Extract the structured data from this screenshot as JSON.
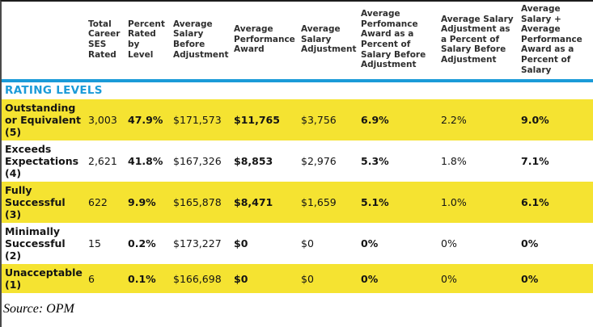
{
  "colors": {
    "highlight_yellow": "#f5e331",
    "accent_blue": "#1b9bd8"
  },
  "table": {
    "section_label": "RATING LEVELS",
    "columns": [
      "",
      "Total Career SES Rated",
      "Percent Rated by Level",
      "Average Salary Before Adjustment",
      "Average Performance Award",
      "Average Salary Adjustment",
      "Average Perfomance Award as a Percent of Salary Before Adjustment",
      "Average Salary Adjustment as a Percent of Salary Before Adjustment",
      "Average Salary + Average Performance Award as a Percent of Salary"
    ],
    "bold_value_columns": [
      1,
      3,
      5,
      7
    ],
    "rows": [
      {
        "label": "Outstanding or Equivalent (5)",
        "highlighted": true,
        "values": [
          "3,003",
          "47.9%",
          "$171,573",
          "$11,765",
          "$3,756",
          "6.9%",
          "2.2%",
          "9.0%"
        ]
      },
      {
        "label": "Exceeds Expectations (4)",
        "highlighted": false,
        "values": [
          "2,621",
          "41.8%",
          "$167,326",
          "$8,853",
          "$2,976",
          "5.3%",
          "1.8%",
          "7.1%"
        ]
      },
      {
        "label": "Fully Successful (3)",
        "highlighted": true,
        "values": [
          "622",
          "9.9%",
          "$165,878",
          "$8,471",
          "$1,659",
          "5.1%",
          "1.0%",
          "6.1%"
        ]
      },
      {
        "label": "Minimally Successful (2)",
        "highlighted": false,
        "values": [
          "15",
          "0.2%",
          "$173,227",
          "$0",
          "$0",
          "0%",
          "0%",
          "0%"
        ]
      },
      {
        "label": "Unacceptable (1)",
        "highlighted": true,
        "values": [
          "6",
          "0.1%",
          "$166,698",
          "$0",
          "$0",
          "0%",
          "0%",
          "0%"
        ]
      }
    ]
  },
  "source_note": "Source: OPM"
}
